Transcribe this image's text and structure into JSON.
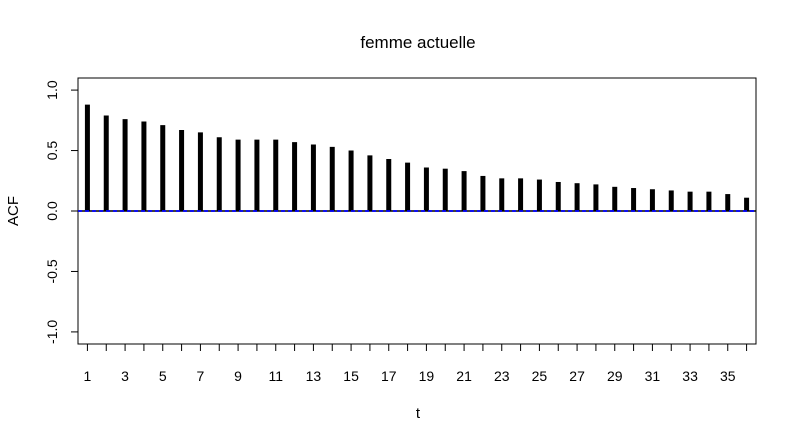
{
  "chart_data": {
    "type": "bar",
    "title": "femme actuelle",
    "xlabel": "t",
    "ylabel": "ACF",
    "x": [
      1,
      2,
      3,
      4,
      5,
      6,
      7,
      8,
      9,
      10,
      11,
      12,
      13,
      14,
      15,
      16,
      17,
      18,
      19,
      20,
      21,
      22,
      23,
      24,
      25,
      26,
      27,
      28,
      29,
      30,
      31,
      32,
      33,
      34,
      35,
      36
    ],
    "values": [
      0.88,
      0.79,
      0.76,
      0.74,
      0.71,
      0.67,
      0.65,
      0.61,
      0.59,
      0.59,
      0.59,
      0.57,
      0.55,
      0.53,
      0.5,
      0.46,
      0.43,
      0.4,
      0.36,
      0.35,
      0.33,
      0.29,
      0.27,
      0.27,
      0.26,
      0.24,
      0.23,
      0.22,
      0.2,
      0.19,
      0.18,
      0.17,
      0.16,
      0.16,
      0.14,
      0.11
    ],
    "xlim": [
      0.5,
      36.5
    ],
    "ylim": [
      -1.1,
      1.1
    ],
    "xticks": [
      1,
      3,
      5,
      7,
      9,
      11,
      13,
      15,
      17,
      19,
      21,
      23,
      25,
      27,
      29,
      31,
      33,
      35
    ],
    "yticks": [
      -1.0,
      -0.5,
      0.0,
      0.5,
      1.0
    ],
    "ytick_labels": [
      "-1.0",
      "-0.5",
      "0.0",
      "0.5",
      "1.0"
    ],
    "confidence_band": 0.0,
    "colors": {
      "bars": "#000000",
      "zero_line": "#000000",
      "confidence_line": "#0000ff"
    }
  }
}
